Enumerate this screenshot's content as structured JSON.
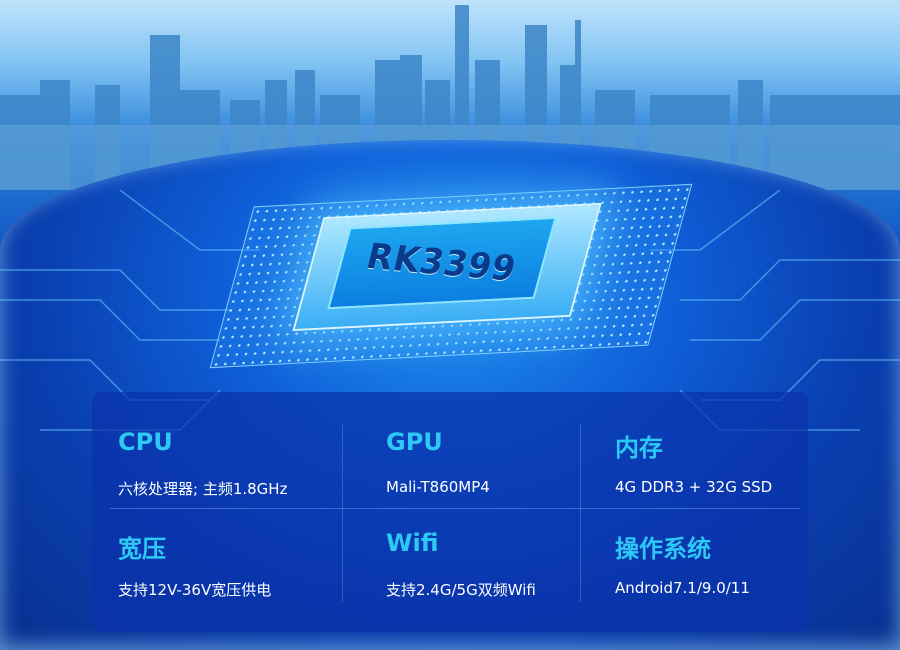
{
  "chip": {
    "label": "RK3399"
  },
  "specs": [
    {
      "title": "CPU",
      "desc": "六核处理器; 主频1.8GHz"
    },
    {
      "title": "GPU",
      "desc": "Mali-T860MP4"
    },
    {
      "title": "内存",
      "desc": "4G DDR3 + 32G SSD"
    },
    {
      "title": "宽压",
      "desc": "支持12V-36V宽压供电"
    },
    {
      "title": "Wifi",
      "desc": "支持2.4G/5G双频Wifi"
    },
    {
      "title": "操作系统",
      "desc": "Android7.1/9.0/11"
    }
  ],
  "colors": {
    "title": "#2ec8f7",
    "text": "#ffffff",
    "panel": "#0a32aa"
  }
}
